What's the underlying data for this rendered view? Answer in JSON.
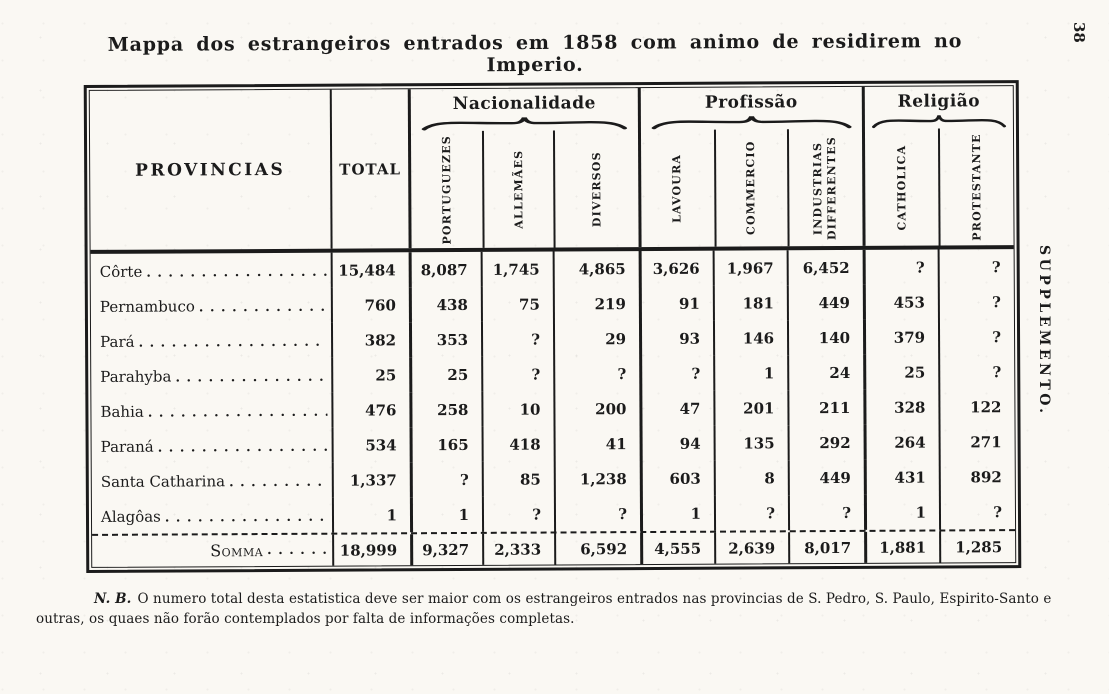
{
  "colors": {
    "ink": "#1b1b1b",
    "paper": "#faf8f3"
  },
  "page": {
    "title": "Mappa dos estrangeiros entrados em 1858 com animo de residirem no Imperio.",
    "page_number": "38",
    "side_label": "SUPPLEMENTO.",
    "footnote_label": "N. B.",
    "footnote_text": "O numero total desta estatistica deve ser maior com os estrangeiros entrados nas provincias de S. Pedro, S. Paulo, Espirito-Santo e outras, os quaes não forão contemplados por falta de informações completas."
  },
  "table": {
    "col_provincias": "PROVINCIAS",
    "col_total": "TOTAL",
    "groups": [
      {
        "label": "Nacionalidade",
        "cols": [
          "PORTUGUEZES",
          "ALLEMÃES",
          "DIVERSOS"
        ]
      },
      {
        "label": "Profissão",
        "cols": [
          "LAVOURA",
          "COMMERCIO",
          "INDUSTRIAS DIFFERENTES"
        ]
      },
      {
        "label": "Religião",
        "cols": [
          "CATHOLICA",
          "PROTESTANTE"
        ]
      }
    ],
    "rows": [
      {
        "province": "Côrte",
        "values": [
          "15,484",
          "8,087",
          "1,745",
          "4,865",
          "3,626",
          "1,967",
          "6,452",
          "?",
          "?"
        ]
      },
      {
        "province": "Pernambuco",
        "values": [
          "760",
          "438",
          "75",
          "219",
          "91",
          "181",
          "449",
          "453",
          "?"
        ]
      },
      {
        "province": "Pará",
        "values": [
          "382",
          "353",
          "?",
          "29",
          "93",
          "146",
          "140",
          "379",
          "?"
        ]
      },
      {
        "province": "Parahyba",
        "values": [
          "25",
          "25",
          "?",
          "?",
          "?",
          "1",
          "24",
          "25",
          "?"
        ]
      },
      {
        "province": "Bahia",
        "values": [
          "476",
          "258",
          "10",
          "200",
          "47",
          "201",
          "211",
          "328",
          "122"
        ]
      },
      {
        "province": "Paraná",
        "values": [
          "534",
          "165",
          "418",
          "41",
          "94",
          "135",
          "292",
          "264",
          "271"
        ]
      },
      {
        "province": "Santa Catharina",
        "values": [
          "1,337",
          "?",
          "85",
          "1,238",
          "603",
          "8",
          "449",
          "431",
          "892"
        ]
      },
      {
        "province": "Alagôas",
        "values": [
          "1",
          "1",
          "?",
          "?",
          "1",
          "?",
          "?",
          "1",
          "?"
        ]
      }
    ],
    "somma": {
      "label": "Somma",
      "values": [
        "18,999",
        "9,327",
        "2,333",
        "6,592",
        "4,555",
        "2,639",
        "8,017",
        "1,881",
        "1,285"
      ]
    }
  }
}
